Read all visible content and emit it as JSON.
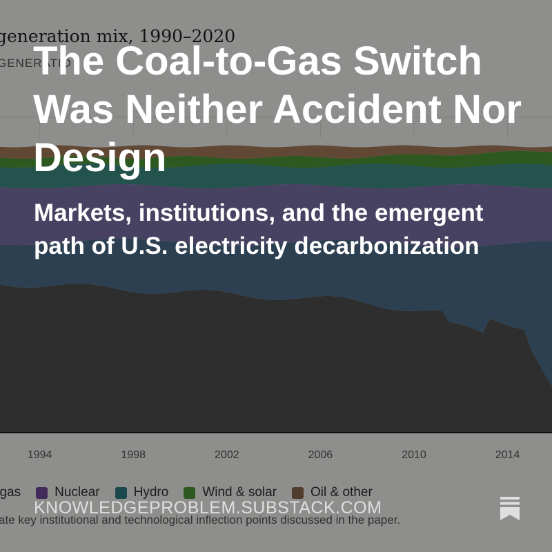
{
  "post": {
    "title": "The Coal-to-Gas Switch Was Neither Accident Nor Design",
    "subtitle": "Markets, institutions, and the emergent path of U.S. electricity decarbonization",
    "site": "KNOWLEDGEPROBLEM.SUBSTACK.COM"
  },
  "icons": {
    "brand": "substack-bookmark-icon"
  },
  "chart_data": {
    "type": "area",
    "title": "generation mix, 1990–2020",
    "subtitle": "GENERATIO",
    "x_tick_labels": [
      "1994",
      "1998",
      "2002",
      "2006",
      "2010",
      "2014"
    ],
    "x_ticks": [
      1994,
      1998,
      2002,
      2006,
      2010,
      2014
    ],
    "xlim": [
      1992.3,
      2015.9
    ],
    "legend": [
      {
        "label": "l gas",
        "color": "#3c4650"
      },
      {
        "label": "Nuclear",
        "color": "#6f4a9e"
      },
      {
        "label": "Hydro",
        "color": "#2e7d86"
      },
      {
        "label": "Wind & solar",
        "color": "#4f9a3a"
      },
      {
        "label": "Oil & other",
        "color": "#8a6a50"
      }
    ],
    "caption": "ate key institutional and technological inflection points discussed in the paper."
  },
  "colors": {
    "coal": "#505050",
    "gas": "#4c6f8c",
    "nuclear": "#7b73a8",
    "hydro": "#3f8d83",
    "wind_solar": "#4f9a3a",
    "oil_other": "#a67d5a",
    "overlay": "rgba(0,0,0,0.42)",
    "text": "#ffffff"
  }
}
